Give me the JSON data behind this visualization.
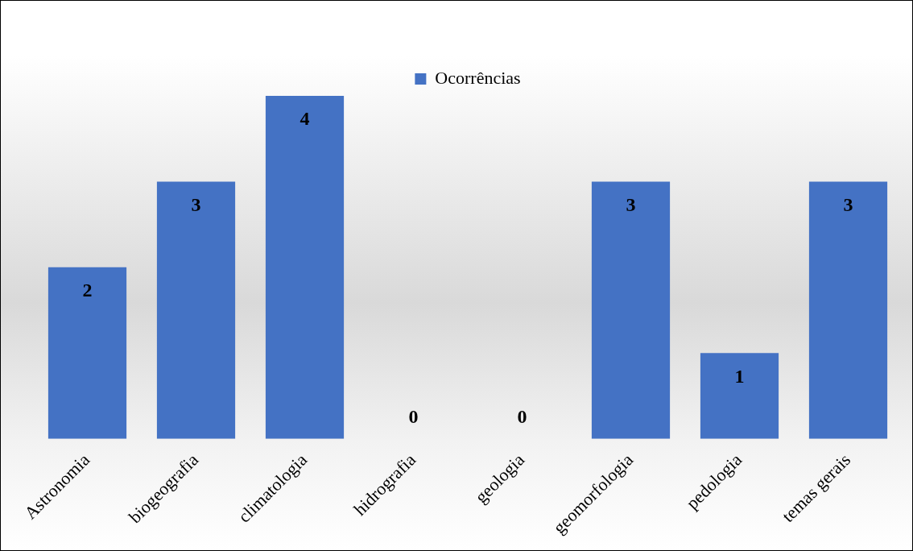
{
  "chart_data": {
    "type": "bar",
    "categories": [
      "Astronomia",
      "biogeografia",
      "climatologia",
      "hidrografia",
      "geologia",
      "geomorfologia",
      "pedologia",
      "temas gerais"
    ],
    "series": [
      {
        "name": "Ocorrências",
        "color": "#4472c4",
        "values": [
          2,
          3,
          4,
          0,
          0,
          3,
          1,
          3
        ]
      }
    ],
    "data_labels": true,
    "legend": "top",
    "grid": false
  }
}
